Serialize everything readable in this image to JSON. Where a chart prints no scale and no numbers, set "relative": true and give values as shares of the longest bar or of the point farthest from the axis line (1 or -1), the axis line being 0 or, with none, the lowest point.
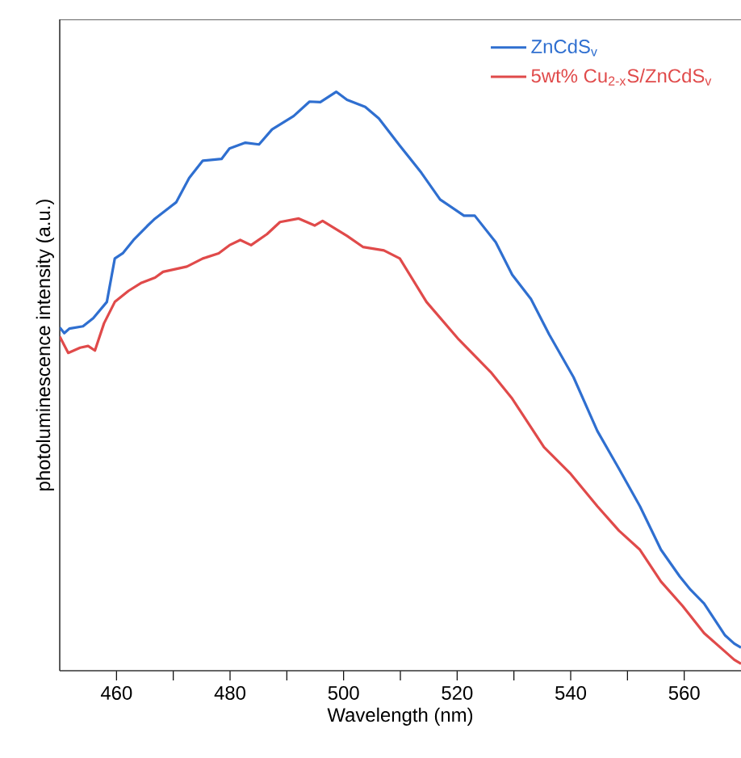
{
  "chart_data": {
    "type": "line",
    "xlabel": "Wavelength (nm)",
    "ylabel": "photoluminescence intensity (a.u.)",
    "relative": true,
    "legend": "top right",
    "tick_labels": "x",
    "line_style": "solid",
    "marker": "none",
    "xlim": [
      450,
      570
    ],
    "xticks": [
      460,
      {
        "value": 470,
        "label": null
      },
      480,
      {
        "value": 490,
        "label": null
      },
      500,
      {
        "value": 510,
        "label": null
      },
      520,
      {
        "value": 530,
        "label": null
      },
      540,
      {
        "value": 550,
        "label": null
      },
      560
    ],
    "series": [
      {
        "name": "ZnCdS$_{v}$",
        "color": "#2f6fd0",
        "x": [
          450,
          450.8,
          451.7,
          454.1,
          455.9,
          458.3,
          459.7,
          461.1,
          463.0,
          465.4,
          466.8,
          470.5,
          472.8,
          475.2,
          478.5,
          479.9,
          482.7,
          485.1,
          487.4,
          491.2,
          494.0,
          495.9,
          498.7,
          500.6,
          503.8,
          506.2,
          509.9,
          513.7,
          517.0,
          521.2,
          523.1,
          526.8,
          529.7,
          533.0,
          536.2,
          540.5,
          544.7,
          548.5,
          552.2,
          555.9,
          559.2,
          561.1,
          563.5,
          567.2,
          568.8,
          570
        ],
        "values": [
          0.593,
          0.583,
          0.591,
          0.595,
          0.609,
          0.637,
          0.712,
          0.721,
          0.744,
          0.768,
          0.781,
          0.809,
          0.851,
          0.881,
          0.884,
          0.902,
          0.912,
          0.909,
          0.935,
          0.958,
          0.983,
          0.982,
          1.0,
          0.986,
          0.974,
          0.954,
          0.907,
          0.86,
          0.814,
          0.786,
          0.786,
          0.74,
          0.684,
          0.642,
          0.581,
          0.507,
          0.414,
          0.349,
          0.284,
          0.209,
          0.163,
          0.14,
          0.116,
          0.061,
          0.047,
          0.04
        ]
      },
      {
        "name": "5wt% Cu$_{2-x}$S/ZnCdS$_{v}$",
        "color": "#e04a4a",
        "x": [
          450,
          451.5,
          453.6,
          455.0,
          456.2,
          457.8,
          459.7,
          462.1,
          464.4,
          466.8,
          468.2,
          472.4,
          475.2,
          478.0,
          479.9,
          481.8,
          483.7,
          486.5,
          488.8,
          492.1,
          494.9,
          496.3,
          500.6,
          503.4,
          507.1,
          509.9,
          514.6,
          520.3,
          525.9,
          529.7,
          535.3,
          540.0,
          544.7,
          548.5,
          552.2,
          555.9,
          559.7,
          563.5,
          567.2,
          568.8,
          570
        ],
        "values": [
          0.577,
          0.549,
          0.558,
          0.561,
          0.553,
          0.6,
          0.637,
          0.656,
          0.67,
          0.679,
          0.689,
          0.698,
          0.712,
          0.721,
          0.735,
          0.744,
          0.735,
          0.754,
          0.775,
          0.781,
          0.769,
          0.777,
          0.751,
          0.732,
          0.726,
          0.712,
          0.637,
          0.572,
          0.516,
          0.47,
          0.386,
          0.34,
          0.284,
          0.242,
          0.209,
          0.154,
          0.112,
          0.065,
          0.033,
          0.019,
          0.012
        ]
      }
    ]
  }
}
